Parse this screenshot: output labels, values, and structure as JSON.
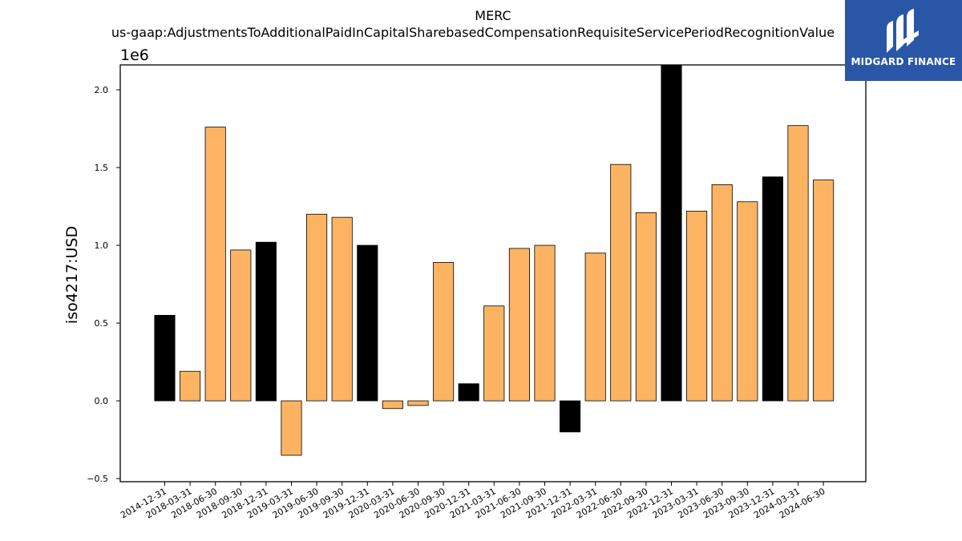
{
  "chart_data": {
    "type": "bar",
    "title": "MERC",
    "subtitle": "us-gaap:AdjustmentsToAdditionalPaidInCapitalSharebasedCompensationRequisiteServicePeriodRecognitionValue",
    "xlabel": "",
    "ylabel": "iso4217:USD",
    "offset_label": "1e6",
    "ylim": [
      -0.52,
      2.16
    ],
    "yticks": [
      -0.5,
      0.0,
      0.5,
      1.0,
      1.5,
      2.0
    ],
    "ytick_labels": [
      "−0.5",
      "0.0",
      "0.5",
      "1.0",
      "1.5",
      "2.0"
    ],
    "grid": false,
    "categories": [
      "2014-12-31",
      "2018-03-31",
      "2018-06-30",
      "2018-09-30",
      "2018-12-31",
      "2019-03-31",
      "2019-06-30",
      "2019-09-30",
      "2019-12-31",
      "2020-03-31",
      "2020-06-30",
      "2020-09-30",
      "2020-12-31",
      "2021-03-31",
      "2021-06-30",
      "2021-09-30",
      "2021-12-31",
      "2022-03-31",
      "2022-06-30",
      "2022-09-30",
      "2022-12-31",
      "2023-03-31",
      "2023-06-30",
      "2023-09-30",
      "2023-12-31",
      "2024-03-31",
      "2024-06-30"
    ],
    "values": [
      0.55,
      0.19,
      1.76,
      0.97,
      1.02,
      -0.35,
      1.2,
      1.18,
      1.0,
      -0.05,
      -0.03,
      0.89,
      0.11,
      0.61,
      0.98,
      1.0,
      -0.2,
      0.95,
      1.52,
      1.21,
      2.2,
      1.22,
      1.39,
      1.28,
      1.44,
      1.77,
      1.42
    ],
    "bar_colors": [
      "#000000",
      "#fdb462",
      "#fdb462",
      "#fdb462",
      "#000000",
      "#fdb462",
      "#fdb462",
      "#fdb462",
      "#000000",
      "#fdb462",
      "#fdb462",
      "#fdb462",
      "#000000",
      "#fdb462",
      "#fdb462",
      "#fdb462",
      "#000000",
      "#fdb462",
      "#fdb462",
      "#fdb462",
      "#000000",
      "#fdb462",
      "#fdb462",
      "#fdb462",
      "#000000",
      "#fdb462",
      "#fdb462"
    ]
  },
  "logo": {
    "text": "MIDGARD FINANCE",
    "background": "#2a56a8"
  }
}
